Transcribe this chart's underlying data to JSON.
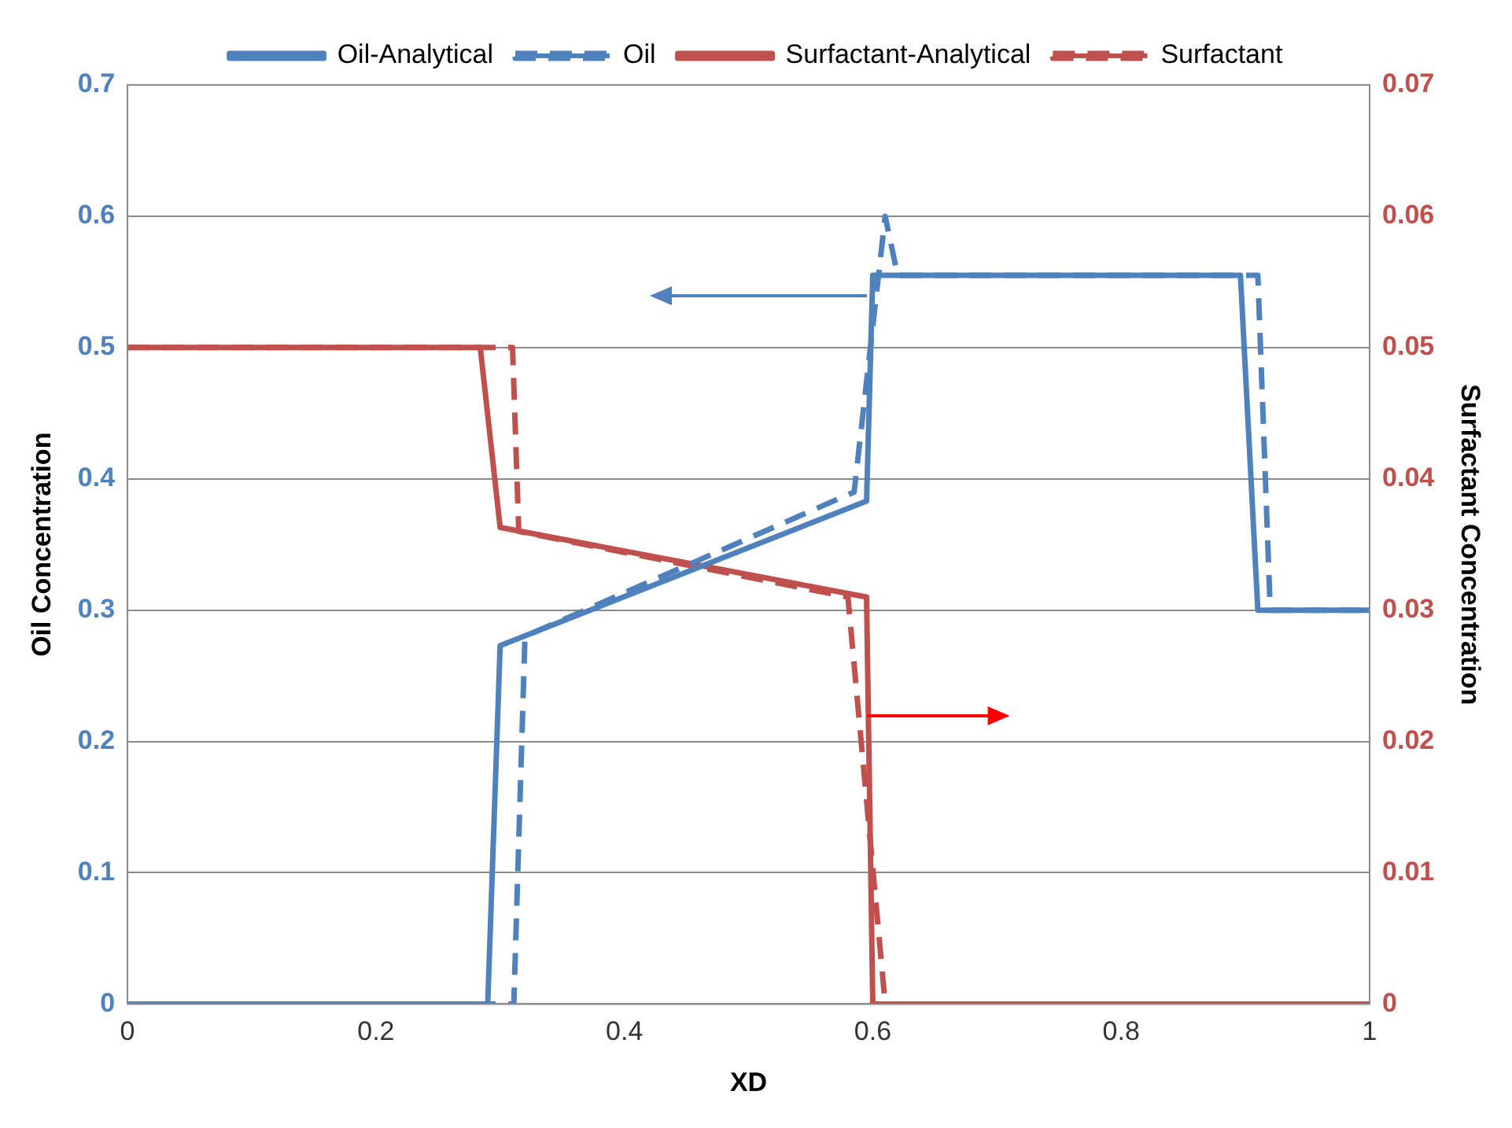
{
  "chart_data": {
    "type": "line",
    "xlabel": "XD",
    "ylabel": "Oil Concentration",
    "y2label": "Surfactant Concentration",
    "xlim": [
      0,
      1
    ],
    "xticks": [
      0,
      0.2,
      0.4,
      0.6,
      0.8,
      1
    ],
    "ylim": [
      0,
      0.7
    ],
    "yticks": [
      0,
      0.1,
      0.2,
      0.3,
      0.4,
      0.5,
      0.6,
      0.7
    ],
    "y2lim": [
      0,
      0.07
    ],
    "y2ticks": [
      0,
      0.01,
      0.02,
      0.03,
      0.04,
      0.05,
      0.06,
      0.07
    ],
    "grid": "y",
    "legend": "top",
    "marker": "none",
    "series": [
      {
        "name": "Oil-Analytical",
        "color": "#4f81bd",
        "line_style": "solid",
        "x": [
          0,
          0.29,
          0.3,
          0.595,
          0.6,
          0.896,
          0.91,
          1
        ],
        "values": [
          0,
          0,
          0.273,
          0.383,
          0.555,
          0.555,
          0.3,
          0.3
        ]
      },
      {
        "name": "Oil",
        "color": "#4f81bd",
        "line_style": "dashed",
        "x": [
          0,
          0.311,
          0.32,
          0.585,
          0.61,
          0.62,
          0.91,
          0.92,
          1
        ],
        "values": [
          0,
          0,
          0.28,
          0.39,
          0.6,
          0.555,
          0.555,
          0.3,
          0.3
        ]
      },
      {
        "name": "Surfactant-Analytical",
        "color": "#c0504d",
        "line_style": "solid",
        "axis": "y2",
        "x": [
          0,
          0.284,
          0.3,
          0.595,
          0.6,
          1
        ],
        "values": [
          0.05,
          0.05,
          0.0363,
          0.031,
          0,
          0
        ]
      },
      {
        "name": "Surfactant",
        "color": "#c0504d",
        "line_style": "dashed",
        "axis": "y2",
        "x": [
          0,
          0.31,
          0.315,
          0.58,
          0.61,
          1
        ],
        "values": [
          0.05,
          0.05,
          0.036,
          0.031,
          0,
          0
        ]
      }
    ]
  }
}
